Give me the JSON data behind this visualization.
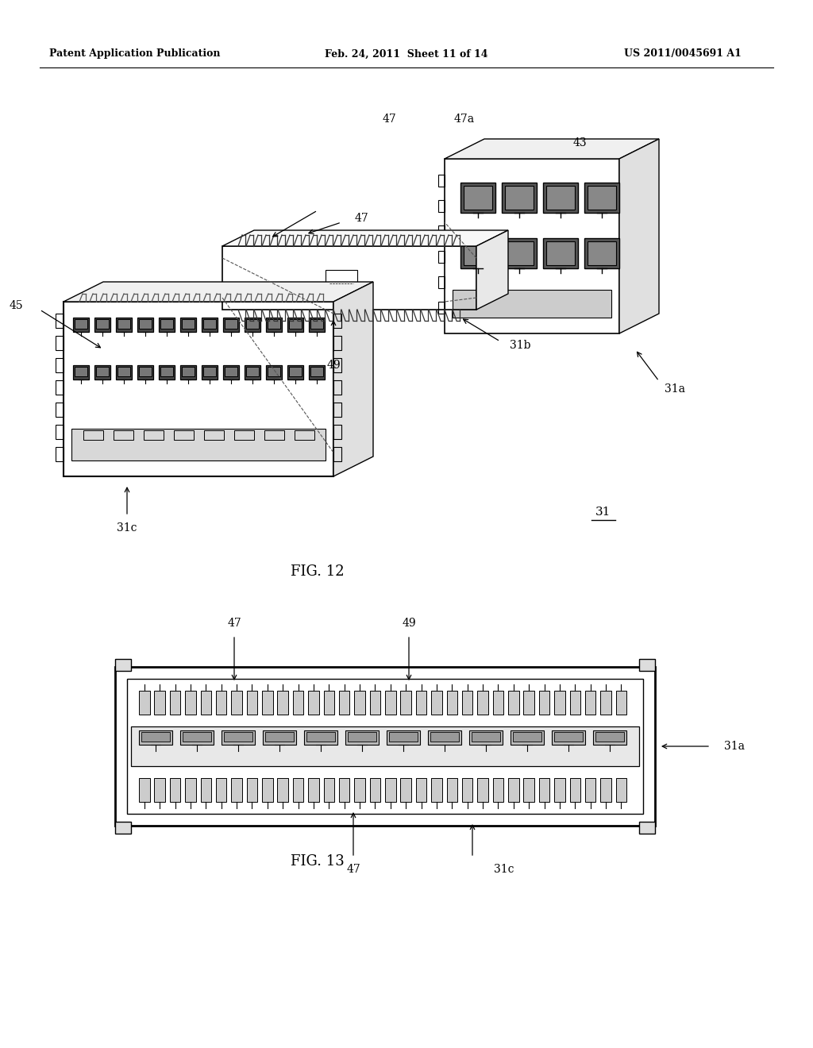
{
  "background_color": "#ffffff",
  "header_left": "Patent Application Publication",
  "header_middle": "Feb. 24, 2011  Sheet 11 of 14",
  "header_right": "US 2011/0045691 A1",
  "fig12_label": "FIG. 12",
  "fig13_label": "FIG. 13",
  "label_31": "31",
  "label_31a": "31a",
  "label_31b": "31b",
  "label_31c": "31c",
  "label_43": "43",
  "label_45": "45",
  "label_47": "47",
  "label_47a": "47a",
  "label_49": "49"
}
